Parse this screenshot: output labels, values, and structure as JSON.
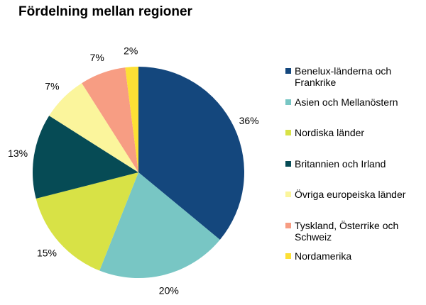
{
  "chart_data": {
    "type": "pie",
    "title": "Fördelning mellan regioner",
    "slices": [
      {
        "label": "Benelux-länderna och Frankrike",
        "value": 36,
        "value_label": "36%",
        "color": "#14477d"
      },
      {
        "label": "Asien och Mellanöstern",
        "value": 20,
        "value_label": "20%",
        "color": "#78c6c4"
      },
      {
        "label": "Nordiska länder",
        "value": 15,
        "value_label": "15%",
        "color": "#d8e246"
      },
      {
        "label": "Britannien och Irland",
        "value": 13,
        "value_label": "13%",
        "color": "#064b55"
      },
      {
        "label": "Övriga europeiska länder",
        "value": 7,
        "value_label": "7%",
        "color": "#fbf59c"
      },
      {
        "label": "Tyskland, Österrike och Schweiz",
        "value": 7,
        "value_label": "7%",
        "color": "#f79d83"
      },
      {
        "label": "Nordamerika",
        "value": 2,
        "value_label": "2%",
        "color": "#fde035"
      }
    ],
    "legend_position": "right"
  }
}
